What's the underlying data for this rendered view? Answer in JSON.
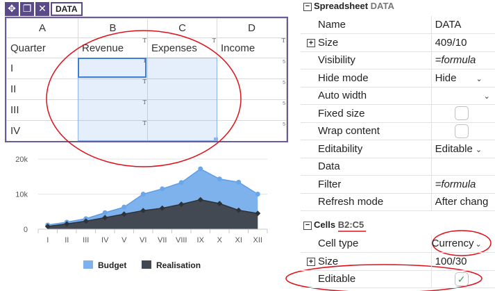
{
  "toolbar": {
    "move_icon": "move-icon",
    "copy_icon": "copy-icon",
    "close_icon": "close-icon",
    "label": "DATA"
  },
  "sheet": {
    "columns": [
      "A",
      "B",
      "C",
      "D"
    ],
    "header_row": [
      "Quarter",
      "Revenue",
      "Expenses",
      "Income"
    ],
    "rows": [
      "I",
      "II",
      "III",
      "IV"
    ],
    "marker_t": "T",
    "marker_s": "5"
  },
  "chart_data": {
    "type": "area",
    "categories": [
      "I",
      "II",
      "III",
      "IV",
      "V",
      "VI",
      "VII",
      "VIII",
      "IX",
      "X",
      "XI",
      "XII"
    ],
    "series": [
      {
        "name": "Budget",
        "values": [
          1200,
          2000,
          3000,
          4700,
          6300,
          10000,
          11500,
          13300,
          17200,
          14300,
          13400,
          10000
        ],
        "color": "#7eb2ec"
      },
      {
        "name": "Realisation",
        "values": [
          800,
          1500,
          2300,
          3300,
          4300,
          5300,
          6000,
          7100,
          8400,
          7300,
          5400,
          4500
        ],
        "color": "#434952"
      }
    ],
    "ylim": [
      0,
      20000
    ],
    "yticks": [
      "0",
      "10k",
      "20k"
    ],
    "grid": true,
    "legend": "bottom"
  },
  "props": {
    "spreadsheet_title": "Spreadsheet",
    "spreadsheet_name": "DATA",
    "rows": [
      {
        "key": "Name",
        "value": "DATA"
      },
      {
        "key": "Size",
        "value": "409/10"
      },
      {
        "key": "Visibility",
        "placeholder": "=formula"
      },
      {
        "key": "Hide mode",
        "value": "Hide"
      },
      {
        "key": "Auto width",
        "value": ""
      },
      {
        "key": "Fixed size"
      },
      {
        "key": "Wrap content"
      },
      {
        "key": "Editability",
        "value": "Editable"
      },
      {
        "key": "Data",
        "value": ""
      },
      {
        "key": "Filter",
        "placeholder": "=formula"
      },
      {
        "key": "Refresh mode",
        "value": "After chang"
      }
    ],
    "cells_title": "Cells",
    "cells_range": "B2:C5",
    "cell_rows": [
      {
        "key": "Cell type",
        "value": "Currency"
      },
      {
        "key": "Size",
        "value": "100/30"
      },
      {
        "key": "Editable",
        "checkmark": "✓"
      }
    ]
  },
  "annotation_color": "#e0101a"
}
